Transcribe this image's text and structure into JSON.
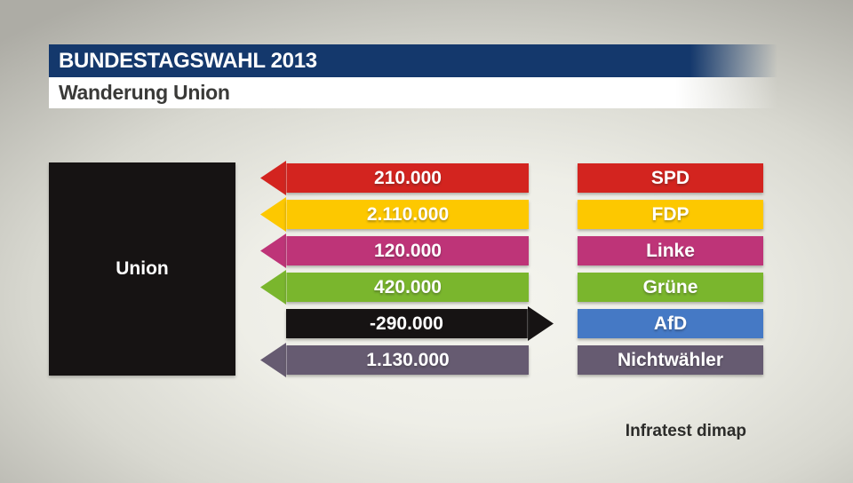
{
  "header": {
    "title": "BUNDESTAGSWAHL 2013",
    "subtitle": "Wanderung Union"
  },
  "origin": {
    "label": "Union"
  },
  "source": {
    "credit": "Infratest dimap"
  },
  "colors": {
    "header_bar": "#14386c",
    "subtitle_bar": "#ffffff",
    "subtitle_text": "#3a3a38",
    "background_center": "#f5f5ef",
    "background_edge": "#adaca5",
    "origin_box": "#161313",
    "value_text": "#ffffff",
    "source_text": "#2c2c2a"
  },
  "chart_data": {
    "type": "bar",
    "title": "Wanderung Union",
    "context": "BUNDESTAGSWAHL 2013",
    "origin": "Union",
    "categories": [
      "SPD",
      "FDP",
      "Linke",
      "Grüne",
      "AfD",
      "Nichtwähler"
    ],
    "values": [
      210000,
      2110000,
      120000,
      420000,
      -290000,
      1130000
    ],
    "value_labels": [
      "210.000",
      "2.110.000",
      "120.000",
      "420.000",
      "-290.000",
      "1.130.000"
    ],
    "rows": [
      {
        "party": "SPD",
        "value": 210000,
        "value_label": "210.000",
        "arrow_color": "#d3241f",
        "box_color": "#d3241f",
        "direction": "in"
      },
      {
        "party": "FDP",
        "value": 2110000,
        "value_label": "2.110.000",
        "arrow_color": "#fdc800",
        "box_color": "#fdc800",
        "direction": "in"
      },
      {
        "party": "Linke",
        "value": 120000,
        "value_label": "120.000",
        "arrow_color": "#be3478",
        "box_color": "#be3478",
        "direction": "in"
      },
      {
        "party": "Grüne",
        "value": 420000,
        "value_label": "420.000",
        "arrow_color": "#7ab62d",
        "box_color": "#7ab62d",
        "direction": "in"
      },
      {
        "party": "AfD",
        "value": -290000,
        "value_label": "-290.000",
        "arrow_color": "#161313",
        "box_color": "#4579c5",
        "direction": "out"
      },
      {
        "party": "Nichtwähler",
        "value": 1130000,
        "value_label": "1.130.000",
        "arrow_color": "#665b71",
        "box_color": "#665b71",
        "direction": "in"
      }
    ]
  }
}
